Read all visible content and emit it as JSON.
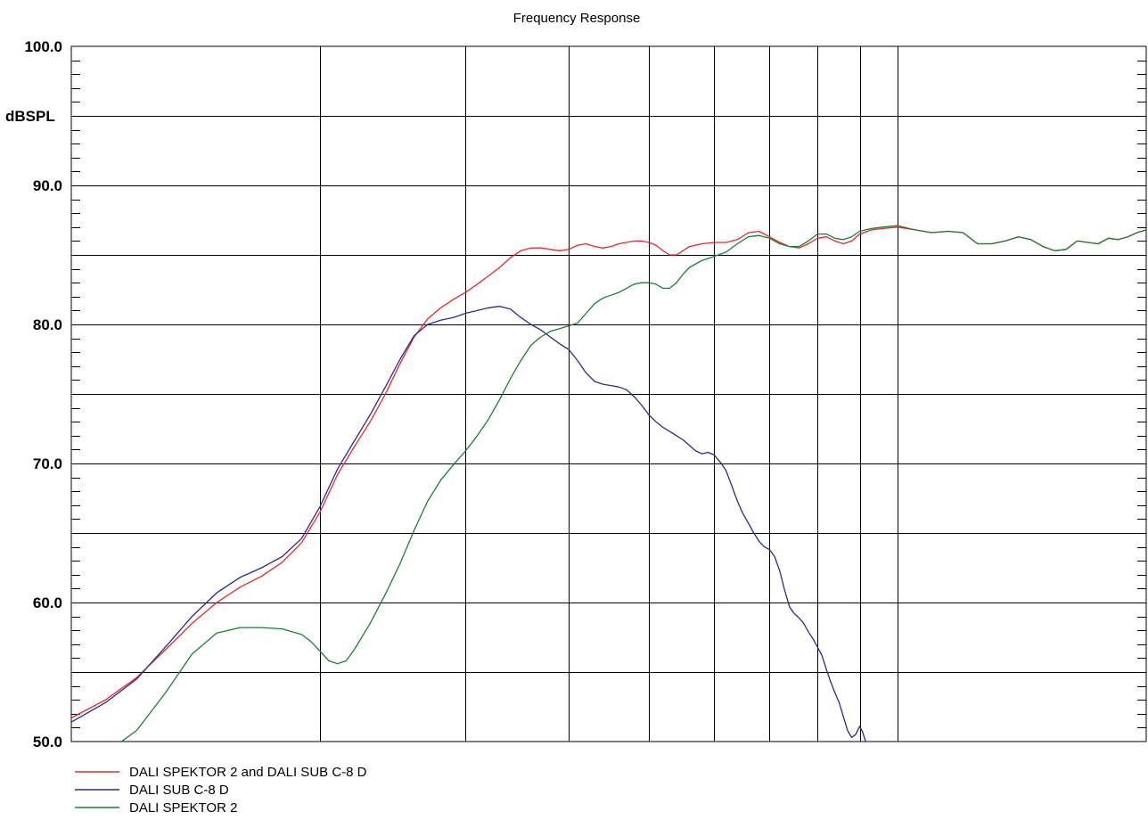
{
  "chart_data": {
    "type": "line",
    "title": "Frequency Response",
    "ylabel": "dBSPL",
    "xlabel": "",
    "ylim": [
      50.0,
      100.0
    ],
    "y_ticks": [
      "100.0",
      "90.0",
      "80.0",
      "70.0",
      "60.0",
      "50.0"
    ],
    "x_scale": "log",
    "x_domain_hz": [
      10,
      200
    ],
    "x_major_grid_hz": [
      20,
      30,
      40,
      50,
      60,
      70,
      80,
      90,
      100
    ],
    "y_grid_step": 5,
    "grid": true,
    "legend_position": "bottom-left",
    "series": [
      {
        "name": "DALI SPEKTOR 2 and DALI SUB C-8 D",
        "color": "#e8282b",
        "points": [
          [
            10,
            51.7
          ],
          [
            11,
            53.0
          ],
          [
            12,
            54.6
          ],
          [
            13,
            56.6
          ],
          [
            14,
            58.5
          ],
          [
            15,
            60.0
          ],
          [
            16,
            61.1
          ],
          [
            17,
            61.9
          ],
          [
            18,
            62.9
          ],
          [
            19,
            64.3
          ],
          [
            20,
            66.5
          ],
          [
            21,
            69.2
          ],
          [
            22,
            71.2
          ],
          [
            23,
            73.0
          ],
          [
            24,
            75.0
          ],
          [
            25,
            77.2
          ],
          [
            26,
            79.1
          ],
          [
            27,
            80.4
          ],
          [
            28,
            81.2
          ],
          [
            29,
            81.8
          ],
          [
            30,
            82.3
          ],
          [
            31,
            82.9
          ],
          [
            32,
            83.5
          ],
          [
            33,
            84.1
          ],
          [
            34,
            84.8
          ],
          [
            35,
            85.3
          ],
          [
            36,
            85.5
          ],
          [
            37,
            85.5
          ],
          [
            38,
            85.4
          ],
          [
            39,
            85.3
          ],
          [
            40,
            85.4
          ],
          [
            41,
            85.7
          ],
          [
            42,
            85.8
          ],
          [
            43,
            85.6
          ],
          [
            44,
            85.5
          ],
          [
            45,
            85.6
          ],
          [
            46,
            85.8
          ],
          [
            47,
            85.9
          ],
          [
            48,
            86.0
          ],
          [
            49,
            86.0
          ],
          [
            50,
            85.9
          ],
          [
            51,
            85.7
          ],
          [
            52,
            85.3
          ],
          [
            53,
            85.0
          ],
          [
            54,
            85.0
          ],
          [
            55,
            85.3
          ],
          [
            56,
            85.6
          ],
          [
            58,
            85.8
          ],
          [
            60,
            85.9
          ],
          [
            62,
            85.9
          ],
          [
            64,
            86.1
          ],
          [
            66,
            86.6
          ],
          [
            68,
            86.7
          ],
          [
            70,
            86.3
          ],
          [
            72,
            85.9
          ],
          [
            74,
            85.6
          ],
          [
            76,
            85.5
          ],
          [
            78,
            85.8
          ],
          [
            80,
            86.2
          ],
          [
            82,
            86.3
          ],
          [
            84,
            86.0
          ],
          [
            86,
            85.8
          ],
          [
            88,
            86.0
          ],
          [
            90,
            86.5
          ],
          [
            93,
            86.8
          ],
          [
            96,
            86.9
          ],
          [
            100,
            87.0
          ],
          [
            105,
            86.8
          ],
          [
            110,
            86.6
          ],
          [
            115,
            86.7
          ],
          [
            120,
            86.6
          ],
          [
            125,
            85.8
          ],
          [
            130,
            85.8
          ],
          [
            135,
            86.0
          ],
          [
            140,
            86.3
          ],
          [
            145,
            86.1
          ],
          [
            150,
            85.6
          ],
          [
            155,
            85.3
          ],
          [
            160,
            85.4
          ],
          [
            165,
            86.0
          ],
          [
            170,
            85.9
          ],
          [
            175,
            85.8
          ],
          [
            180,
            86.2
          ],
          [
            185,
            86.1
          ],
          [
            190,
            86.3
          ],
          [
            195,
            86.6
          ],
          [
            200,
            86.8
          ]
        ]
      },
      {
        "name": "DALI SUB C-8 D",
        "color": "#2a2c8c",
        "points": [
          [
            10,
            51.4
          ],
          [
            11,
            52.8
          ],
          [
            12,
            54.5
          ],
          [
            13,
            56.8
          ],
          [
            14,
            59.0
          ],
          [
            15,
            60.7
          ],
          [
            16,
            61.8
          ],
          [
            17,
            62.5
          ],
          [
            18,
            63.3
          ],
          [
            19,
            64.6
          ],
          [
            20,
            66.9
          ],
          [
            21,
            69.6
          ],
          [
            22,
            71.6
          ],
          [
            23,
            73.5
          ],
          [
            24,
            75.5
          ],
          [
            25,
            77.5
          ],
          [
            26,
            79.2
          ],
          [
            27,
            80.0
          ],
          [
            28,
            80.3
          ],
          [
            29,
            80.5
          ],
          [
            30,
            80.8
          ],
          [
            31,
            81.0
          ],
          [
            32,
            81.2
          ],
          [
            33,
            81.3
          ],
          [
            34,
            81.1
          ],
          [
            35,
            80.5
          ],
          [
            36,
            80.0
          ],
          [
            37,
            79.6
          ],
          [
            38,
            79.1
          ],
          [
            39,
            78.6
          ],
          [
            40,
            78.2
          ],
          [
            41,
            77.4
          ],
          [
            42,
            76.5
          ],
          [
            43,
            75.9
          ],
          [
            44,
            75.7
          ],
          [
            45,
            75.6
          ],
          [
            46,
            75.5
          ],
          [
            47,
            75.3
          ],
          [
            48,
            74.8
          ],
          [
            49,
            74.2
          ],
          [
            50,
            73.5
          ],
          [
            51,
            73.0
          ],
          [
            52,
            72.6
          ],
          [
            53,
            72.3
          ],
          [
            54,
            72.0
          ],
          [
            55,
            71.7
          ],
          [
            56,
            71.3
          ],
          [
            57,
            70.9
          ],
          [
            58,
            70.7
          ],
          [
            59,
            70.8
          ],
          [
            60,
            70.6
          ],
          [
            61,
            70.1
          ],
          [
            62,
            69.5
          ],
          [
            63,
            68.4
          ],
          [
            64,
            67.3
          ],
          [
            65,
            66.4
          ],
          [
            66,
            65.7
          ],
          [
            67,
            65.0
          ],
          [
            68,
            64.4
          ],
          [
            69,
            64.0
          ],
          [
            70,
            63.8
          ],
          [
            71,
            63.3
          ],
          [
            72,
            62.3
          ],
          [
            73,
            60.9
          ],
          [
            74,
            59.7
          ],
          [
            75,
            59.2
          ],
          [
            76,
            58.9
          ],
          [
            77,
            58.5
          ],
          [
            78,
            57.9
          ],
          [
            79,
            57.4
          ],
          [
            80,
            56.8
          ],
          [
            81,
            56.2
          ],
          [
            82,
            55.2
          ],
          [
            83,
            54.3
          ],
          [
            84,
            53.5
          ],
          [
            85,
            52.8
          ],
          [
            86,
            51.8
          ],
          [
            87,
            50.8
          ],
          [
            88,
            50.3
          ],
          [
            89,
            50.5
          ],
          [
            90,
            51.1
          ],
          [
            90.7,
            50.7
          ],
          [
            91.5,
            50.0
          ]
        ]
      },
      {
        "name": "DALI SPEKTOR 2",
        "color": "#1e7d36",
        "points": [
          [
            11.5,
            50.0
          ],
          [
            12,
            50.8
          ],
          [
            13,
            53.5
          ],
          [
            14,
            56.3
          ],
          [
            15,
            57.8
          ],
          [
            16,
            58.2
          ],
          [
            17,
            58.2
          ],
          [
            18,
            58.1
          ],
          [
            19,
            57.7
          ],
          [
            19.5,
            57.2
          ],
          [
            20,
            56.5
          ],
          [
            20.5,
            55.8
          ],
          [
            21,
            55.6
          ],
          [
            21.5,
            55.8
          ],
          [
            22,
            56.6
          ],
          [
            23,
            58.5
          ],
          [
            24,
            60.6
          ],
          [
            25,
            62.8
          ],
          [
            26,
            65.2
          ],
          [
            27,
            67.3
          ],
          [
            28,
            68.8
          ],
          [
            29,
            69.9
          ],
          [
            30,
            70.9
          ],
          [
            31,
            72.0
          ],
          [
            32,
            73.2
          ],
          [
            33,
            74.6
          ],
          [
            34,
            76.1
          ],
          [
            35,
            77.4
          ],
          [
            36,
            78.5
          ],
          [
            37,
            79.1
          ],
          [
            38,
            79.5
          ],
          [
            39,
            79.7
          ],
          [
            40,
            79.9
          ],
          [
            41,
            80.1
          ],
          [
            42,
            80.8
          ],
          [
            43,
            81.5
          ],
          [
            44,
            81.9
          ],
          [
            45,
            82.1
          ],
          [
            46,
            82.3
          ],
          [
            47,
            82.6
          ],
          [
            48,
            82.9
          ],
          [
            49,
            83.0
          ],
          [
            50,
            83.0
          ],
          [
            51,
            82.9
          ],
          [
            52,
            82.6
          ],
          [
            53,
            82.6
          ],
          [
            54,
            83.0
          ],
          [
            55,
            83.6
          ],
          [
            56,
            84.1
          ],
          [
            58,
            84.6
          ],
          [
            60,
            84.9
          ],
          [
            62,
            85.2
          ],
          [
            64,
            85.8
          ],
          [
            66,
            86.3
          ],
          [
            68,
            86.4
          ],
          [
            70,
            86.2
          ],
          [
            72,
            85.8
          ],
          [
            74,
            85.6
          ],
          [
            76,
            85.6
          ],
          [
            78,
            86.0
          ],
          [
            80,
            86.5
          ],
          [
            82,
            86.5
          ],
          [
            84,
            86.2
          ],
          [
            86,
            86.1
          ],
          [
            88,
            86.3
          ],
          [
            90,
            86.7
          ],
          [
            93,
            86.9
          ],
          [
            96,
            87.0
          ],
          [
            100,
            87.1
          ],
          [
            105,
            86.8
          ],
          [
            110,
            86.6
          ],
          [
            115,
            86.7
          ],
          [
            120,
            86.6
          ],
          [
            125,
            85.8
          ],
          [
            130,
            85.8
          ],
          [
            135,
            86.0
          ],
          [
            140,
            86.3
          ],
          [
            145,
            86.1
          ],
          [
            150,
            85.6
          ],
          [
            155,
            85.3
          ],
          [
            160,
            85.4
          ],
          [
            165,
            86.0
          ],
          [
            170,
            85.9
          ],
          [
            175,
            85.8
          ],
          [
            180,
            86.2
          ],
          [
            185,
            86.1
          ],
          [
            190,
            86.3
          ],
          [
            195,
            86.6
          ],
          [
            200,
            86.8
          ]
        ]
      }
    ]
  }
}
